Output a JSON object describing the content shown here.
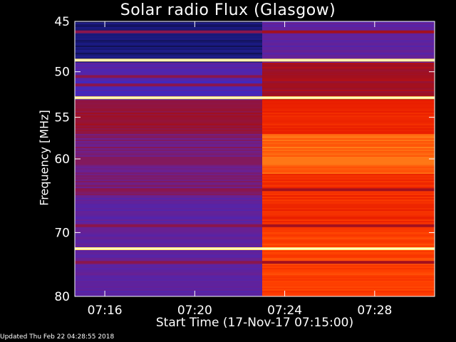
{
  "page": {
    "updated": "Updated Thu Feb 22 04:28:55 2018"
  },
  "chart_data": {
    "type": "heatmap",
    "title": "Solar radio Flux (Glasgow)",
    "xlabel": "Start Time (17-Nov-17 07:15:00)",
    "ylabel": "Frequency [MHz]",
    "x_unit": "time (HH:MM)",
    "xlim": [
      "07:14:40",
      "07:30:40"
    ],
    "ylim": [
      45,
      80
    ],
    "y_scale": "log",
    "y_inverted": true,
    "x_ticks": [
      "07:16",
      "07:20",
      "07:24",
      "07:28"
    ],
    "x_tick_values_min": [
      16,
      20,
      24,
      28
    ],
    "y_ticks": [
      45,
      50,
      55,
      60,
      70,
      80
    ],
    "background_transition_time": "07:23",
    "colormap": [
      "#000000",
      "#1a1a80",
      "#4028c0",
      "#6a2090",
      "#a01020",
      "#e01000",
      "#ff4000",
      "#ff9020",
      "#ffff80",
      "#ffffff"
    ],
    "before_transition": {
      "levels_by_freq": [
        {
          "freq": [
            45,
            49
          ],
          "level": 0.1
        },
        {
          "freq": [
            49,
            50.5
          ],
          "level": 0.28
        },
        {
          "freq": [
            50.5,
            53
          ],
          "level": 0.25
        },
        {
          "freq": [
            53,
            57
          ],
          "level": 0.42
        },
        {
          "freq": [
            57,
            65
          ],
          "level": 0.36
        },
        {
          "freq": [
            65,
            80
          ],
          "level": 0.3
        }
      ]
    },
    "after_transition": {
      "levels_by_freq": [
        {
          "freq": [
            45,
            49
          ],
          "level": 0.3
        },
        {
          "freq": [
            49,
            53
          ],
          "level": 0.45
        },
        {
          "freq": [
            53,
            57
          ],
          "level": 0.6
        },
        {
          "freq": [
            57,
            62
          ],
          "level": 0.72
        },
        {
          "freq": [
            62,
            70
          ],
          "level": 0.62
        },
        {
          "freq": [
            70,
            80
          ],
          "level": 0.66
        }
      ]
    },
    "bright_lines_mhz": [
      48.8,
      52.8,
      72.4
    ],
    "dark_lines_mhz": [
      46.0,
      50.5,
      51.4,
      64.0,
      69.0,
      74.5
    ]
  }
}
